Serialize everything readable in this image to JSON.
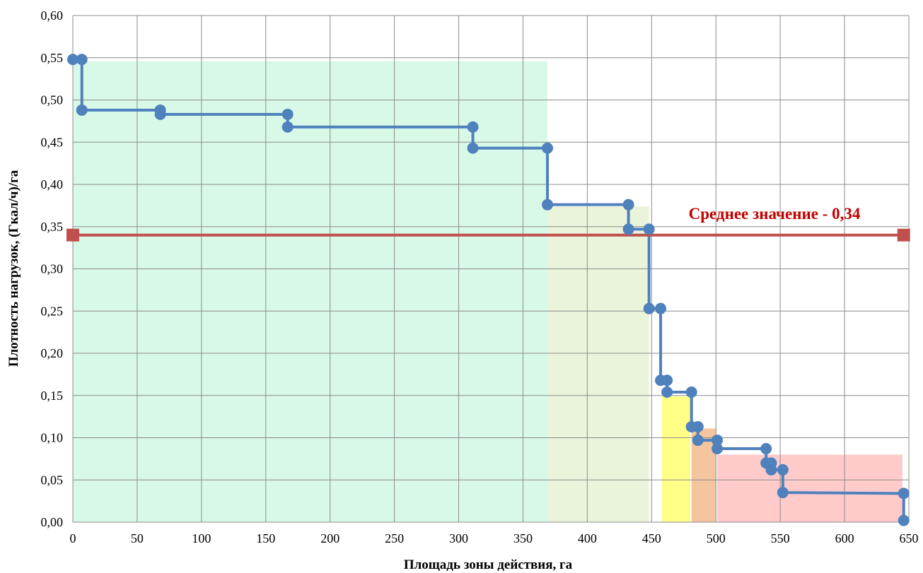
{
  "chart_data": {
    "type": "line",
    "title": "",
    "xlabel": "Площадь зоны действия, га",
    "ylabel": "Плотность нагрузок, (Гкал/ч)/га",
    "xlim": [
      0,
      650
    ],
    "ylim": [
      0,
      0.6
    ],
    "x_ticks": [
      0,
      50,
      100,
      150,
      200,
      250,
      300,
      350,
      400,
      450,
      500,
      550,
      600,
      650
    ],
    "x_tick_labels": [
      "0",
      "50",
      "100",
      "150",
      "200",
      "250",
      "300",
      "350",
      "400",
      "450",
      "500",
      "550",
      "600",
      "650"
    ],
    "y_ticks": [
      0,
      0.05,
      0.1,
      0.15,
      0.2,
      0.25,
      0.3,
      0.35,
      0.4,
      0.45,
      0.5,
      0.55,
      0.6
    ],
    "y_tick_labels": [
      "0,00",
      "0,05",
      "0,10",
      "0,15",
      "0,20",
      "0,25",
      "0,30",
      "0,35",
      "0,40",
      "0,45",
      "0,50",
      "0,55",
      "0,60"
    ],
    "grid": true,
    "legend": "none",
    "series": [
      {
        "color": "#4f81bd",
        "x": [
          0,
          7,
          7,
          68,
          68,
          167,
          167,
          311,
          311,
          369,
          369,
          432,
          432,
          448,
          448,
          457,
          457,
          462,
          462,
          481,
          481,
          486,
          486,
          501,
          501,
          539,
          539,
          543,
          543,
          552,
          552,
          646,
          646
        ],
        "y": [
          0.548,
          0.548,
          0.488,
          0.488,
          0.483,
          0.483,
          0.468,
          0.468,
          0.443,
          0.443,
          0.376,
          0.376,
          0.347,
          0.347,
          0.253,
          0.253,
          0.168,
          0.168,
          0.154,
          0.154,
          0.113,
          0.113,
          0.097,
          0.097,
          0.087,
          0.087,
          0.07,
          0.07,
          0.062,
          0.062,
          0.035,
          0.034,
          0.002
        ]
      },
      {
        "color": "#c0504d",
        "x": [
          0,
          646
        ],
        "y": [
          0.34,
          0.34
        ]
      }
    ],
    "fill_zones": [
      {
        "x": [
          0,
          369
        ],
        "y_top": 0.546,
        "color": "#d9f9e8"
      },
      {
        "x": [
          369,
          448
        ],
        "y_top": 0.374,
        "color": "#e9f4da"
      },
      {
        "x": [
          458,
          480
        ],
        "y_top": 0.149,
        "color": "#ffff88"
      },
      {
        "x": [
          481,
          500
        ],
        "y_top": 0.111,
        "color": "#f4c59f"
      },
      {
        "x": [
          501,
          645
        ],
        "y_top": 0.08,
        "color": "#ffcaca"
      }
    ],
    "annotations": [
      {
        "text": "Среднее значение - 0,34",
        "color": "#c00000"
      }
    ]
  }
}
